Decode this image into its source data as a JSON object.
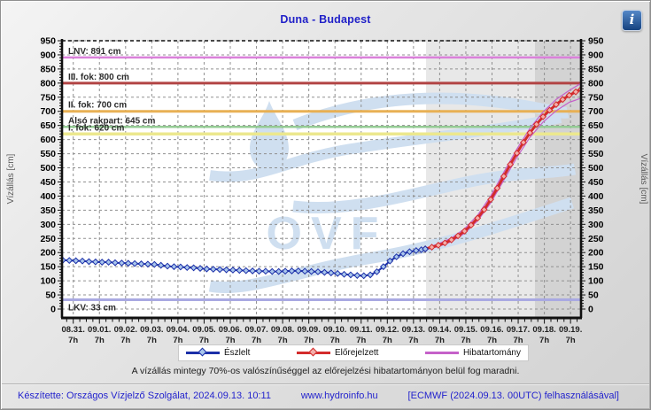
{
  "title": "Duna - Budapest",
  "info_button": {
    "label": "i"
  },
  "watermark": "OVF",
  "note": "A vízállás mintegy 70%-os valószínűséggel az előrejelzési hibatartományon belül fog maradni.",
  "footer": {
    "left": "Készítette: Országos Vízjelző Szolgálat, 2024.09.13. 10:11",
    "center": "www.hydroinfo.hu",
    "right": "[ECMWF (2024.09.13. 00UTC) felhasználásával]"
  },
  "chart_data": {
    "type": "line",
    "title": "Duna - Budapest",
    "ylabel_left": "Vízállás [cm]",
    "ylabel_right": "Vízállás [cm]",
    "ylim": [
      0,
      950
    ],
    "ytick_step": 50,
    "x_days": [
      "08.31.",
      "09.01.",
      "09.02.",
      "09.03.",
      "09.04.",
      "09.05.",
      "09.06.",
      "09.07.",
      "09.08.",
      "09.09.",
      "09.10.",
      "09.11.",
      "09.12.",
      "09.13.",
      "09.14.",
      "09.15.",
      "09.16.",
      "09.17.",
      "09.18.",
      "09.19."
    ],
    "x_sub_label": "7h",
    "grid": true,
    "colors": {
      "grid": "#909090",
      "axis": "#111111",
      "observed": "#1b2fa8",
      "observed_fill": "#a9c6ec",
      "forecast": "#d32b2b",
      "forecast_fill": "#f3aeaa",
      "band": "#c561c9",
      "watermark": "#cfdff0",
      "region_forecast": "#e8e8e8",
      "region_extended": "#d3d3d3"
    },
    "regions": [
      {
        "name": "forecast-period",
        "from_day": 13.48,
        "to_day": 17.64,
        "color": "#e8e8e8"
      },
      {
        "name": "extended-period",
        "from_day": 17.64,
        "to_day": 19.85,
        "color": "#d3d3d3"
      }
    ],
    "reference_lines": [
      {
        "name": "lnv",
        "label": "LNV: 891 cm",
        "value": 891,
        "color": "#da80da",
        "width": 2.5
      },
      {
        "name": "iii-fok",
        "label": "III. fok: 800 cm",
        "value": 800,
        "color": "#b24444",
        "width": 3
      },
      {
        "name": "ii-fok",
        "label": "II. fok: 700 cm",
        "value": 700,
        "color": "#e8b054",
        "width": 3
      },
      {
        "name": "also-rakpart",
        "label": "Alsó rakpart: 645 cm",
        "value": 645,
        "color": "#94cb94",
        "width": 2.5
      },
      {
        "name": "i-fok",
        "label": "I. fok: 620 cm",
        "value": 620,
        "color": "#ece88e",
        "width": 3.5
      },
      {
        "name": "lkv",
        "label": "LKV: 33 cm",
        "value": 33,
        "color": "#a9a9e2",
        "width": 3,
        "label_below": true
      }
    ],
    "series": [
      {
        "name": "Hibatartomány felső",
        "role": "band",
        "color": "#c561c9",
        "width": 1.2,
        "marker": "none",
        "points": [
          [
            13.45,
            215
          ],
          [
            13.95,
            231
          ],
          [
            14.45,
            251
          ],
          [
            14.95,
            284
          ],
          [
            15.45,
            332
          ],
          [
            15.95,
            400
          ],
          [
            16.45,
            484
          ],
          [
            16.95,
            567
          ],
          [
            17.45,
            640
          ],
          [
            17.95,
            698
          ],
          [
            18.45,
            742
          ],
          [
            18.95,
            774
          ],
          [
            19.2,
            788
          ],
          [
            19.4,
            799
          ]
        ]
      },
      {
        "name": "Hibatartomány alsó",
        "role": "band",
        "color": "#c561c9",
        "width": 1.2,
        "marker": "none",
        "points": [
          [
            13.45,
            211
          ],
          [
            13.95,
            221
          ],
          [
            14.45,
            239
          ],
          [
            14.95,
            268
          ],
          [
            15.45,
            312
          ],
          [
            15.95,
            376
          ],
          [
            16.45,
            456
          ],
          [
            16.95,
            537
          ],
          [
            17.45,
            608
          ],
          [
            17.95,
            662
          ],
          [
            18.45,
            702
          ],
          [
            18.95,
            732
          ],
          [
            19.2,
            740
          ],
          [
            19.4,
            747
          ]
        ]
      },
      {
        "name": "Előrejelzett",
        "role": "forecast",
        "color": "#d32b2b",
        "width": 3,
        "marker": "diamond",
        "marker_fill": "#f3aeaa",
        "points": [
          [
            13.45,
            213
          ],
          [
            13.7,
            219
          ],
          [
            13.95,
            226
          ],
          [
            14.2,
            234
          ],
          [
            14.45,
            245
          ],
          [
            14.7,
            259
          ],
          [
            14.95,
            276
          ],
          [
            15.2,
            297
          ],
          [
            15.45,
            322
          ],
          [
            15.7,
            352
          ],
          [
            15.95,
            388
          ],
          [
            16.2,
            428
          ],
          [
            16.45,
            470
          ],
          [
            16.7,
            512
          ],
          [
            16.95,
            552
          ],
          [
            17.2,
            590
          ],
          [
            17.45,
            624
          ],
          [
            17.7,
            654
          ],
          [
            17.95,
            681
          ],
          [
            18.2,
            704
          ],
          [
            18.45,
            724
          ],
          [
            18.7,
            742
          ],
          [
            18.95,
            757
          ],
          [
            19.2,
            769
          ],
          [
            19.4,
            778
          ]
        ]
      },
      {
        "name": "Észlelt",
        "role": "observed",
        "color": "#1b2fa8",
        "width": 2,
        "marker": "diamond",
        "marker_fill": "#a9c6ec",
        "points": [
          [
            -0.4,
            173
          ],
          [
            -0.15,
            172
          ],
          [
            0.1,
            171
          ],
          [
            0.35,
            170
          ],
          [
            0.6,
            168
          ],
          [
            0.85,
            167
          ],
          [
            1.1,
            166
          ],
          [
            1.35,
            166
          ],
          [
            1.6,
            164
          ],
          [
            1.85,
            163
          ],
          [
            2.1,
            162
          ],
          [
            2.35,
            161
          ],
          [
            2.6,
            160
          ],
          [
            2.85,
            159
          ],
          [
            3.1,
            158
          ],
          [
            3.35,
            155
          ],
          [
            3.6,
            152
          ],
          [
            3.85,
            150
          ],
          [
            4.1,
            149
          ],
          [
            4.35,
            147
          ],
          [
            4.6,
            146
          ],
          [
            4.85,
            144
          ],
          [
            5.1,
            142
          ],
          [
            5.35,
            141
          ],
          [
            5.6,
            140
          ],
          [
            5.85,
            139
          ],
          [
            6.1,
            138
          ],
          [
            6.35,
            137
          ],
          [
            6.6,
            136
          ],
          [
            6.85,
            135
          ],
          [
            7.1,
            134
          ],
          [
            7.35,
            134
          ],
          [
            7.6,
            133
          ],
          [
            7.85,
            133
          ],
          [
            8.1,
            134
          ],
          [
            8.35,
            135
          ],
          [
            8.6,
            135
          ],
          [
            8.85,
            134
          ],
          [
            9.1,
            133
          ],
          [
            9.35,
            132
          ],
          [
            9.6,
            130
          ],
          [
            9.85,
            128
          ],
          [
            10.1,
            126
          ],
          [
            10.35,
            123
          ],
          [
            10.6,
            121
          ],
          [
            10.85,
            119
          ],
          [
            11.1,
            118
          ],
          [
            11.35,
            121
          ],
          [
            11.6,
            132
          ],
          [
            11.85,
            150
          ],
          [
            12.1,
            170
          ],
          [
            12.35,
            185
          ],
          [
            12.6,
            196
          ],
          [
            12.85,
            203
          ],
          [
            13.1,
            207
          ],
          [
            13.3,
            210
          ],
          [
            13.45,
            213
          ]
        ]
      }
    ],
    "legend": [
      {
        "label": "Észlelt",
        "color": "#1b2fa8",
        "marker": "diamond",
        "marker_fill": "#a9c6ec"
      },
      {
        "label": "Előrejelzett",
        "color": "#d32b2b",
        "marker": "diamond",
        "marker_fill": "#f3aeaa"
      },
      {
        "label": "Hibatartomány",
        "color": "#c561c9",
        "marker": "none",
        "marker_fill": ""
      }
    ],
    "legend_position": "bottom"
  }
}
